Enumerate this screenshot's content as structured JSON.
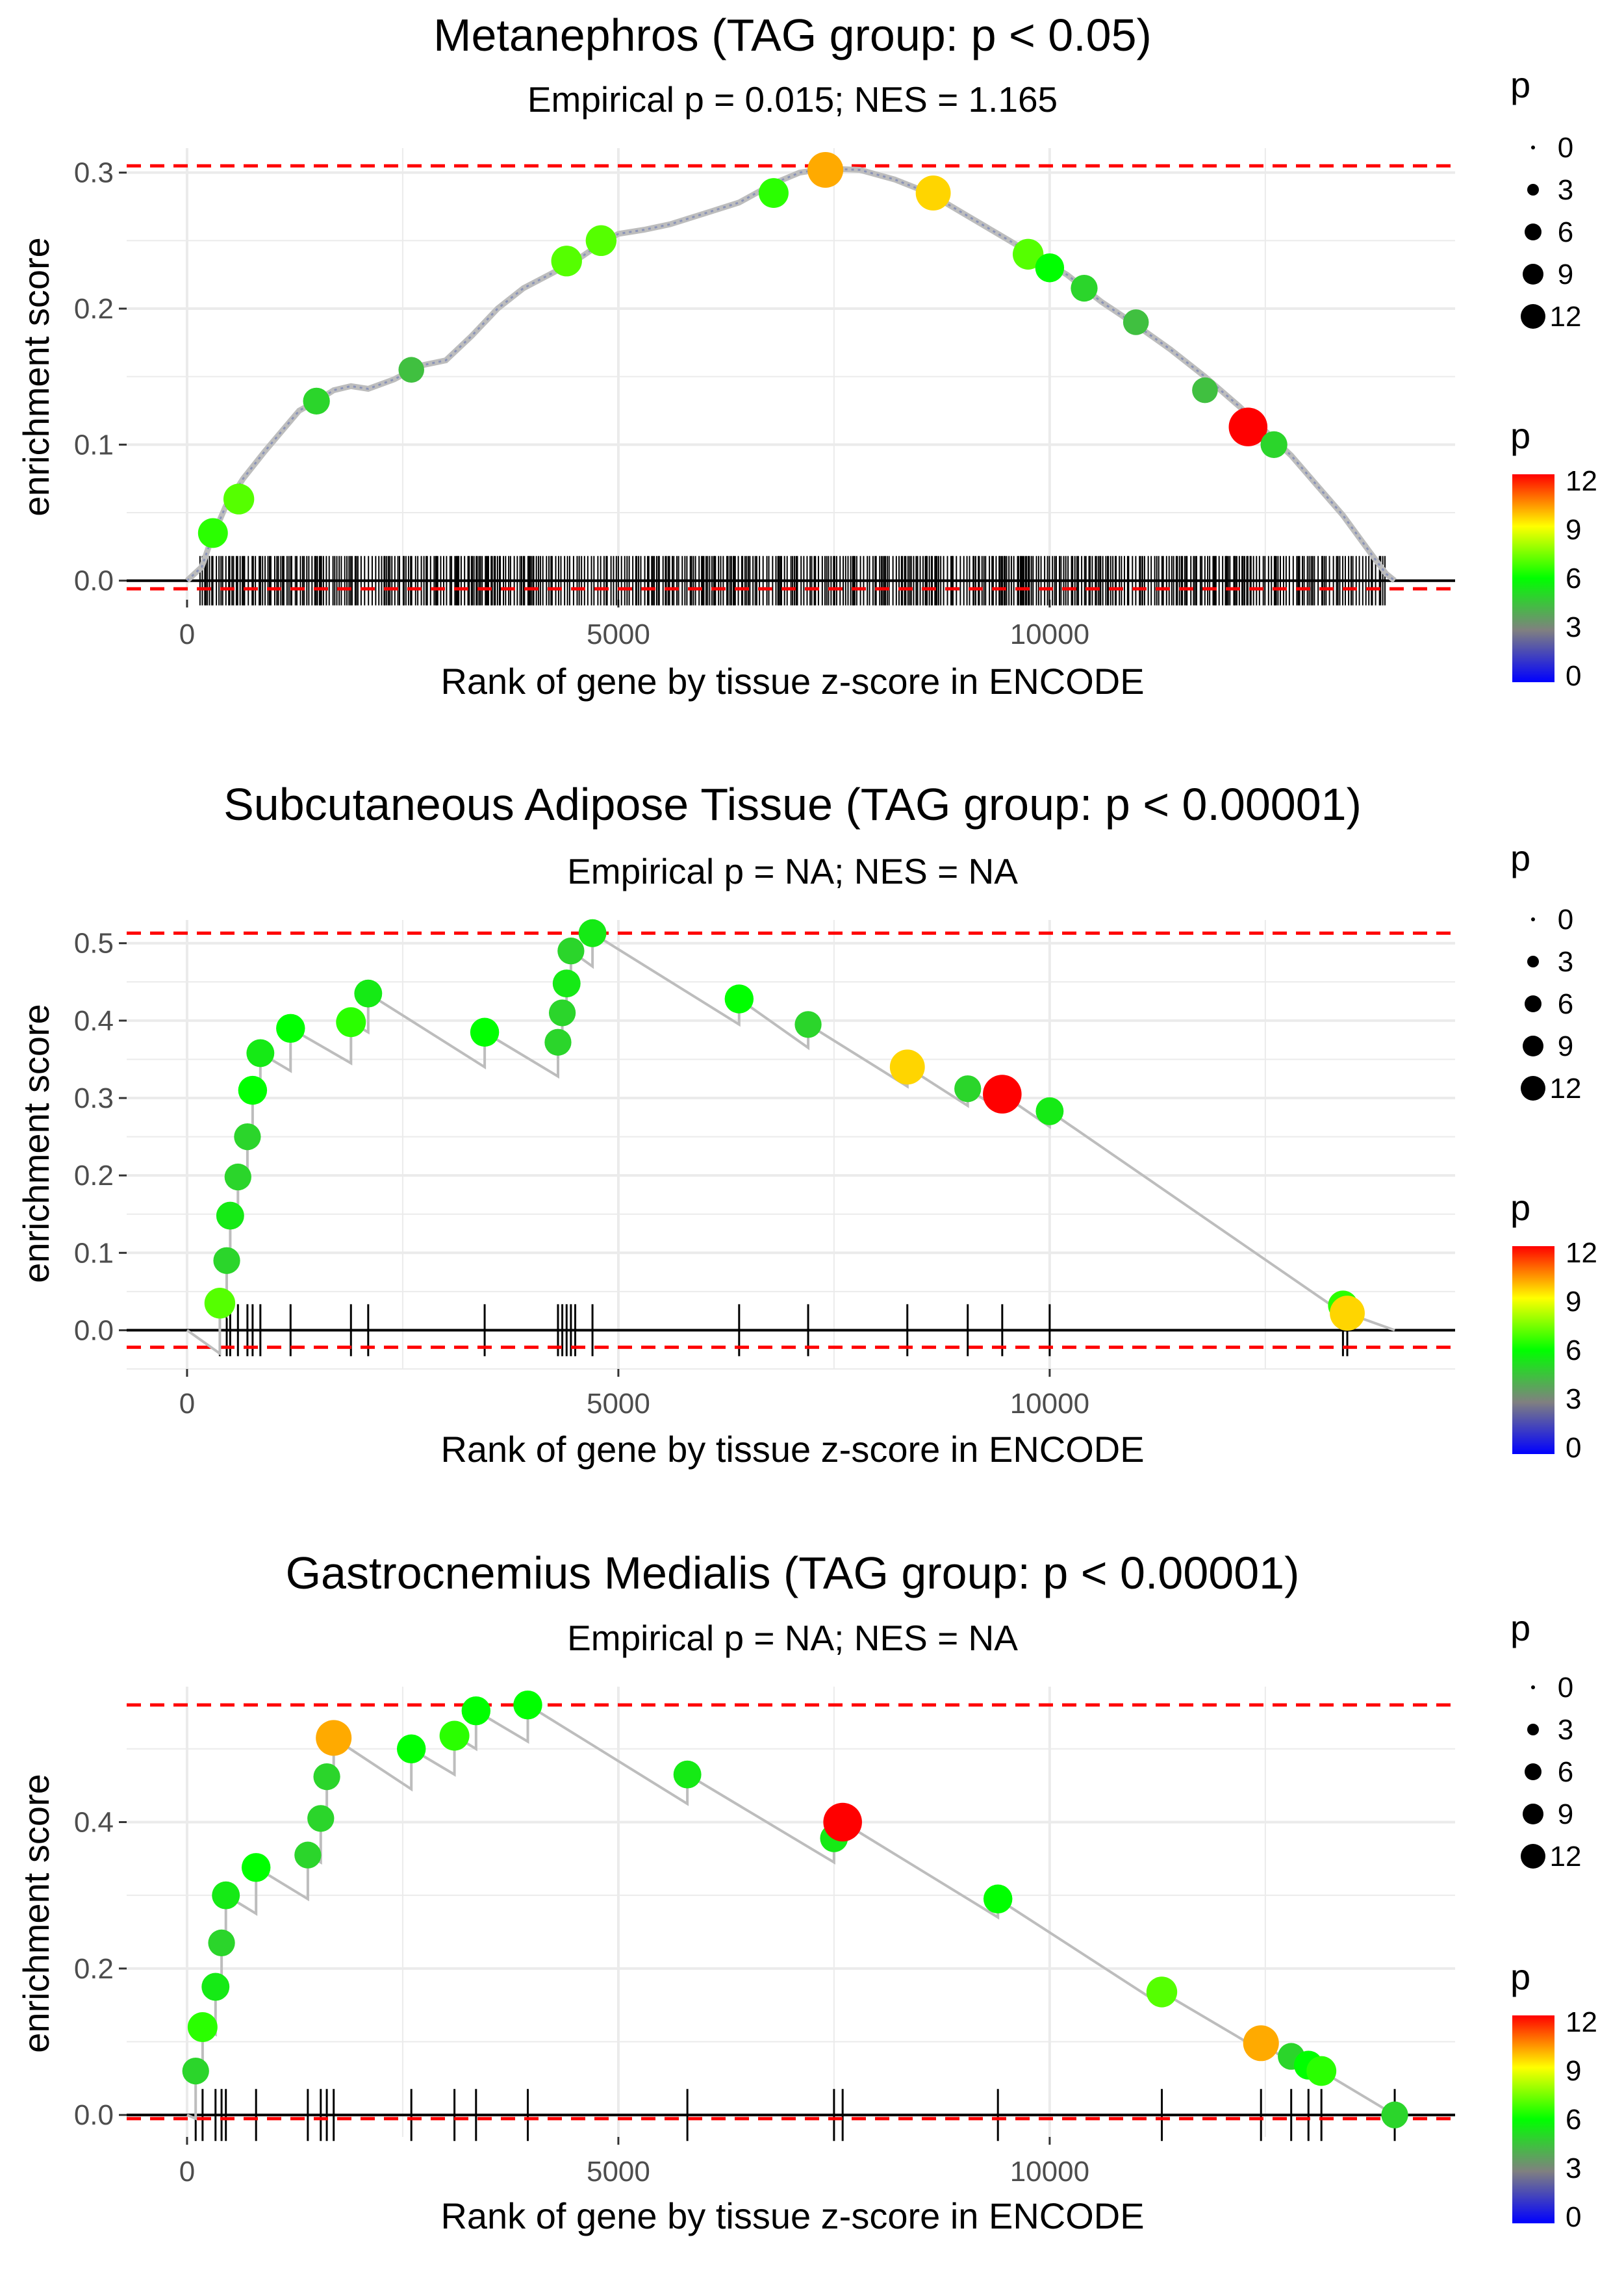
{
  "colors": {
    "enrichment_line": "#bdbdbd",
    "threshold_line": "#ff0000",
    "zero_line": "#000000",
    "gridline": "#ebebeb",
    "rug": "#000000",
    "p_gradient": [
      "#0000ff",
      "#808080",
      "#00ff00",
      "#ffff00",
      "#ff0000"
    ]
  },
  "chart_data": [
    {
      "type": "line",
      "title": "Metanephros (TAG group: p < 0.05)",
      "subtitle": "Empirical p = 0.015; NES = 1.165",
      "xlabel": "Rank of gene by tissue z-score in ENCODE",
      "ylabel": "enrichment score",
      "xlim": [
        -700,
        14700
      ],
      "ylim": [
        -0.014,
        0.318
      ],
      "x_ticks": [
        0,
        5000,
        10000
      ],
      "x_tick_labels": [
        "0",
        "5000",
        "10000"
      ],
      "y_ticks": [
        0,
        0.1,
        0.2,
        0.3
      ],
      "y_tick_labels": [
        "0.0",
        "0.1",
        "0.2",
        "0.3"
      ],
      "threshold_max": 0.305,
      "threshold_min": -0.006,
      "dense_rug": true,
      "rug_range": [
        150,
        13900
      ],
      "curve": [
        [
          0,
          0
        ],
        [
          170,
          0.01
        ],
        [
          280,
          0.03
        ],
        [
          450,
          0.055
        ],
        [
          650,
          0.075
        ],
        [
          900,
          0.095
        ],
        [
          1100,
          0.11
        ],
        [
          1300,
          0.125
        ],
        [
          1500,
          0.132
        ],
        [
          1700,
          0.14
        ],
        [
          1900,
          0.143
        ],
        [
          2100,
          0.141
        ],
        [
          2400,
          0.148
        ],
        [
          2700,
          0.158
        ],
        [
          3000,
          0.162
        ],
        [
          3300,
          0.18
        ],
        [
          3600,
          0.2
        ],
        [
          3900,
          0.215
        ],
        [
          4200,
          0.225
        ],
        [
          4500,
          0.235
        ],
        [
          4800,
          0.248
        ],
        [
          5000,
          0.255
        ],
        [
          5300,
          0.258
        ],
        [
          5600,
          0.262
        ],
        [
          6000,
          0.27
        ],
        [
          6400,
          0.278
        ],
        [
          6800,
          0.292
        ],
        [
          7100,
          0.3
        ],
        [
          7400,
          0.303
        ],
        [
          7800,
          0.302
        ],
        [
          8200,
          0.295
        ],
        [
          8600,
          0.285
        ],
        [
          9000,
          0.27
        ],
        [
          9400,
          0.255
        ],
        [
          9800,
          0.24
        ],
        [
          10200,
          0.225
        ],
        [
          10600,
          0.205
        ],
        [
          11000,
          0.188
        ],
        [
          11400,
          0.17
        ],
        [
          11800,
          0.15
        ],
        [
          12200,
          0.128
        ],
        [
          12500,
          0.11
        ],
        [
          12800,
          0.092
        ],
        [
          13100,
          0.07
        ],
        [
          13400,
          0.048
        ],
        [
          13700,
          0.022
        ],
        [
          13900,
          0.005
        ],
        [
          14000,
          0
        ]
      ],
      "points": [
        {
          "x": 300,
          "y": 0.035,
          "p": 6.5
        },
        {
          "x": 600,
          "y": 0.06,
          "p": 7
        },
        {
          "x": 1500,
          "y": 0.132,
          "p": 5
        },
        {
          "x": 2600,
          "y": 0.155,
          "p": 4.5
        },
        {
          "x": 4400,
          "y": 0.235,
          "p": 7
        },
        {
          "x": 4800,
          "y": 0.25,
          "p": 7
        },
        {
          "x": 6800,
          "y": 0.285,
          "p": 6.5
        },
        {
          "x": 7400,
          "y": 0.302,
          "p": 10
        },
        {
          "x": 8650,
          "y": 0.285,
          "p": 9.5
        },
        {
          "x": 9750,
          "y": 0.24,
          "p": 7
        },
        {
          "x": 10000,
          "y": 0.23,
          "p": 6
        },
        {
          "x": 10400,
          "y": 0.215,
          "p": 5
        },
        {
          "x": 11000,
          "y": 0.19,
          "p": 4.5
        },
        {
          "x": 11800,
          "y": 0.14,
          "p": 4.5
        },
        {
          "x": 12300,
          "y": 0.113,
          "p": 12
        },
        {
          "x": 12600,
          "y": 0.1,
          "p": 5
        }
      ],
      "legend_size": {
        "title": "p",
        "labels": [
          "0",
          "3",
          "6",
          "9",
          "12"
        ]
      },
      "legend_color": {
        "title": "p",
        "labels": [
          "12",
          "9",
          "6",
          "3",
          "0"
        ]
      }
    },
    {
      "type": "line",
      "title": "Subcutaneous Adipose Tissue (TAG group: p < 0.00001)",
      "subtitle": "Empirical p = NA; NES = NA",
      "xlabel": "Rank of gene by tissue z-score in ENCODE",
      "ylabel": "enrichment score",
      "xlim": [
        -700,
        14700
      ],
      "ylim": [
        -0.05,
        0.53
      ],
      "x_ticks": [
        0,
        5000,
        10000
      ],
      "x_tick_labels": [
        "0",
        "5000",
        "10000"
      ],
      "y_ticks": [
        0,
        0.1,
        0.2,
        0.3,
        0.4,
        0.5
      ],
      "y_tick_labels": [
        "0.0",
        "0.1",
        "0.2",
        "0.3",
        "0.4",
        "0.5"
      ],
      "threshold_max": 0.513,
      "threshold_min": -0.022,
      "dense_rug": false,
      "rug": [
        380,
        460,
        500,
        590,
        700,
        760,
        850,
        1200,
        1900,
        2100,
        3450,
        4300,
        4350,
        4400,
        4450,
        4500,
        4700,
        6400,
        7200,
        8350,
        9050,
        9450,
        10000,
        13400,
        13450
      ],
      "curve": [
        [
          0,
          0
        ],
        [
          380,
          -0.03
        ],
        [
          380,
          0.035
        ],
        [
          460,
          0.02
        ],
        [
          460,
          0.09
        ],
        [
          500,
          0.085
        ],
        [
          500,
          0.148
        ],
        [
          590,
          0.14
        ],
        [
          590,
          0.198
        ],
        [
          700,
          0.19
        ],
        [
          700,
          0.25
        ],
        [
          760,
          0.245
        ],
        [
          760,
          0.31
        ],
        [
          850,
          0.3
        ],
        [
          850,
          0.358
        ],
        [
          1200,
          0.335
        ],
        [
          1200,
          0.39
        ],
        [
          1900,
          0.345
        ],
        [
          1900,
          0.398
        ],
        [
          2100,
          0.385
        ],
        [
          2100,
          0.435
        ],
        [
          3450,
          0.34
        ],
        [
          3450,
          0.385
        ],
        [
          4300,
          0.328
        ],
        [
          4300,
          0.372
        ],
        [
          4350,
          0.37
        ],
        [
          4350,
          0.41
        ],
        [
          4400,
          0.408
        ],
        [
          4400,
          0.448
        ],
        [
          4450,
          0.445
        ],
        [
          4450,
          0.49
        ],
        [
          4700,
          0.47
        ],
        [
          4700,
          0.513
        ],
        [
          6400,
          0.395
        ],
        [
          6400,
          0.428
        ],
        [
          7200,
          0.365
        ],
        [
          7200,
          0.395
        ],
        [
          8350,
          0.315
        ],
        [
          8350,
          0.34
        ],
        [
          9050,
          0.29
        ],
        [
          9050,
          0.312
        ],
        [
          9450,
          0.283
        ],
        [
          9450,
          0.305
        ],
        [
          10000,
          0.263
        ],
        [
          10000,
          0.283
        ],
        [
          13400,
          0.022
        ],
        [
          13400,
          0.032
        ],
        [
          13450,
          0.02
        ],
        [
          13450,
          0.022
        ],
        [
          14000,
          0
        ]
      ],
      "points": [
        {
          "x": 380,
          "y": 0.035,
          "p": 7
        },
        {
          "x": 460,
          "y": 0.09,
          "p": 5
        },
        {
          "x": 500,
          "y": 0.148,
          "p": 5.5
        },
        {
          "x": 590,
          "y": 0.198,
          "p": 5
        },
        {
          "x": 700,
          "y": 0.25,
          "p": 5
        },
        {
          "x": 760,
          "y": 0.31,
          "p": 6
        },
        {
          "x": 850,
          "y": 0.358,
          "p": 5.5
        },
        {
          "x": 1200,
          "y": 0.39,
          "p": 6
        },
        {
          "x": 1900,
          "y": 0.398,
          "p": 6.5
        },
        {
          "x": 2100,
          "y": 0.435,
          "p": 5.5
        },
        {
          "x": 3450,
          "y": 0.385,
          "p": 6
        },
        {
          "x": 4300,
          "y": 0.372,
          "p": 5
        },
        {
          "x": 4350,
          "y": 0.41,
          "p": 5
        },
        {
          "x": 4400,
          "y": 0.448,
          "p": 5.5
        },
        {
          "x": 4450,
          "y": 0.49,
          "p": 5
        },
        {
          "x": 4700,
          "y": 0.513,
          "p": 5.5
        },
        {
          "x": 6400,
          "y": 0.428,
          "p": 6
        },
        {
          "x": 7200,
          "y": 0.395,
          "p": 5
        },
        {
          "x": 8350,
          "y": 0.34,
          "p": 9.5
        },
        {
          "x": 9050,
          "y": 0.312,
          "p": 5
        },
        {
          "x": 9450,
          "y": 0.305,
          "p": 12
        },
        {
          "x": 10000,
          "y": 0.283,
          "p": 5.5
        },
        {
          "x": 13400,
          "y": 0.032,
          "p": 6.5
        },
        {
          "x": 13450,
          "y": 0.022,
          "p": 9.5
        }
      ],
      "legend_size": {
        "title": "p",
        "labels": [
          "0",
          "3",
          "6",
          "9",
          "12"
        ]
      },
      "legend_color": {
        "title": "p",
        "labels": [
          "12",
          "9",
          "6",
          "3",
          "0"
        ]
      }
    },
    {
      "type": "line",
      "title": "Gastrocnemius Medialis (TAG group: p < 0.00001)",
      "subtitle": "Empirical p = NA; NES = NA",
      "xlabel": "Rank of gene by tissue z-score in ENCODE",
      "ylabel": "enrichment score",
      "xlim": [
        -700,
        14700
      ],
      "ylim": [
        -0.03,
        0.585
      ],
      "x_ticks": [
        0,
        5000,
        10000
      ],
      "x_tick_labels": [
        "0",
        "5000",
        "10000"
      ],
      "y_ticks": [
        0,
        0.2,
        0.4
      ],
      "y_tick_labels": [
        "0.0",
        "0.2",
        "0.4"
      ],
      "threshold_max": 0.56,
      "threshold_min": -0.005,
      "dense_rug": false,
      "rug": [
        100,
        180,
        330,
        400,
        450,
        800,
        1400,
        1550,
        1620,
        1700,
        2600,
        3100,
        3350,
        3950,
        5800,
        7500,
        7600,
        9400,
        11300,
        12450,
        12800,
        13000,
        13150,
        14000
      ],
      "curve": [
        [
          0,
          0
        ],
        [
          100,
          -0.005
        ],
        [
          100,
          0.06
        ],
        [
          180,
          0.05
        ],
        [
          180,
          0.12
        ],
        [
          330,
          0.11
        ],
        [
          330,
          0.175
        ],
        [
          400,
          0.17
        ],
        [
          400,
          0.235
        ],
        [
          450,
          0.235
        ],
        [
          450,
          0.3
        ],
        [
          800,
          0.275
        ],
        [
          800,
          0.338
        ],
        [
          1400,
          0.295
        ],
        [
          1400,
          0.355
        ],
        [
          1550,
          0.345
        ],
        [
          1550,
          0.405
        ],
        [
          1620,
          0.4
        ],
        [
          1620,
          0.462
        ],
        [
          1700,
          0.455
        ],
        [
          1700,
          0.515
        ],
        [
          2600,
          0.445
        ],
        [
          2600,
          0.5
        ],
        [
          3100,
          0.465
        ],
        [
          3100,
          0.518
        ],
        [
          3350,
          0.5
        ],
        [
          3350,
          0.552
        ],
        [
          3950,
          0.51
        ],
        [
          3950,
          0.56
        ],
        [
          5800,
          0.425
        ],
        [
          5800,
          0.465
        ],
        [
          7500,
          0.345
        ],
        [
          7500,
          0.378
        ],
        [
          7600,
          0.37
        ],
        [
          7600,
          0.4
        ],
        [
          9400,
          0.27
        ],
        [
          9400,
          0.295
        ],
        [
          11300,
          0.15
        ],
        [
          11300,
          0.168
        ],
        [
          12450,
          0.088
        ],
        [
          12450,
          0.098
        ],
        [
          12800,
          0.072
        ],
        [
          12800,
          0.08
        ],
        [
          13000,
          0.06
        ],
        [
          13000,
          0.068
        ],
        [
          13150,
          0.055
        ],
        [
          13150,
          0.06
        ],
        [
          14000,
          0
        ]
      ],
      "points": [
        {
          "x": 100,
          "y": 0.06,
          "p": 5
        },
        {
          "x": 180,
          "y": 0.12,
          "p": 6.5
        },
        {
          "x": 330,
          "y": 0.175,
          "p": 5.5
        },
        {
          "x": 400,
          "y": 0.235,
          "p": 5
        },
        {
          "x": 450,
          "y": 0.3,
          "p": 5.5
        },
        {
          "x": 800,
          "y": 0.338,
          "p": 6
        },
        {
          "x": 1400,
          "y": 0.355,
          "p": 5
        },
        {
          "x": 1550,
          "y": 0.405,
          "p": 5
        },
        {
          "x": 1620,
          "y": 0.462,
          "p": 5
        },
        {
          "x": 1700,
          "y": 0.515,
          "p": 10
        },
        {
          "x": 2600,
          "y": 0.5,
          "p": 6
        },
        {
          "x": 3100,
          "y": 0.518,
          "p": 6.5
        },
        {
          "x": 3350,
          "y": 0.552,
          "p": 6
        },
        {
          "x": 3950,
          "y": 0.56,
          "p": 6
        },
        {
          "x": 5800,
          "y": 0.465,
          "p": 5.5
        },
        {
          "x": 7500,
          "y": 0.378,
          "p": 5.5
        },
        {
          "x": 7600,
          "y": 0.4,
          "p": 12
        },
        {
          "x": 9400,
          "y": 0.295,
          "p": 6
        },
        {
          "x": 11300,
          "y": 0.168,
          "p": 7
        },
        {
          "x": 12450,
          "y": 0.098,
          "p": 10
        },
        {
          "x": 12800,
          "y": 0.08,
          "p": 5
        },
        {
          "x": 13000,
          "y": 0.068,
          "p": 6
        },
        {
          "x": 13150,
          "y": 0.06,
          "p": 6.5
        },
        {
          "x": 14000,
          "y": 0,
          "p": 5
        }
      ],
      "legend_size": {
        "title": "p",
        "labels": [
          "0",
          "3",
          "6",
          "9",
          "12"
        ]
      },
      "legend_color": {
        "title": "p",
        "labels": [
          "12",
          "9",
          "6",
          "3",
          "0"
        ]
      }
    }
  ]
}
